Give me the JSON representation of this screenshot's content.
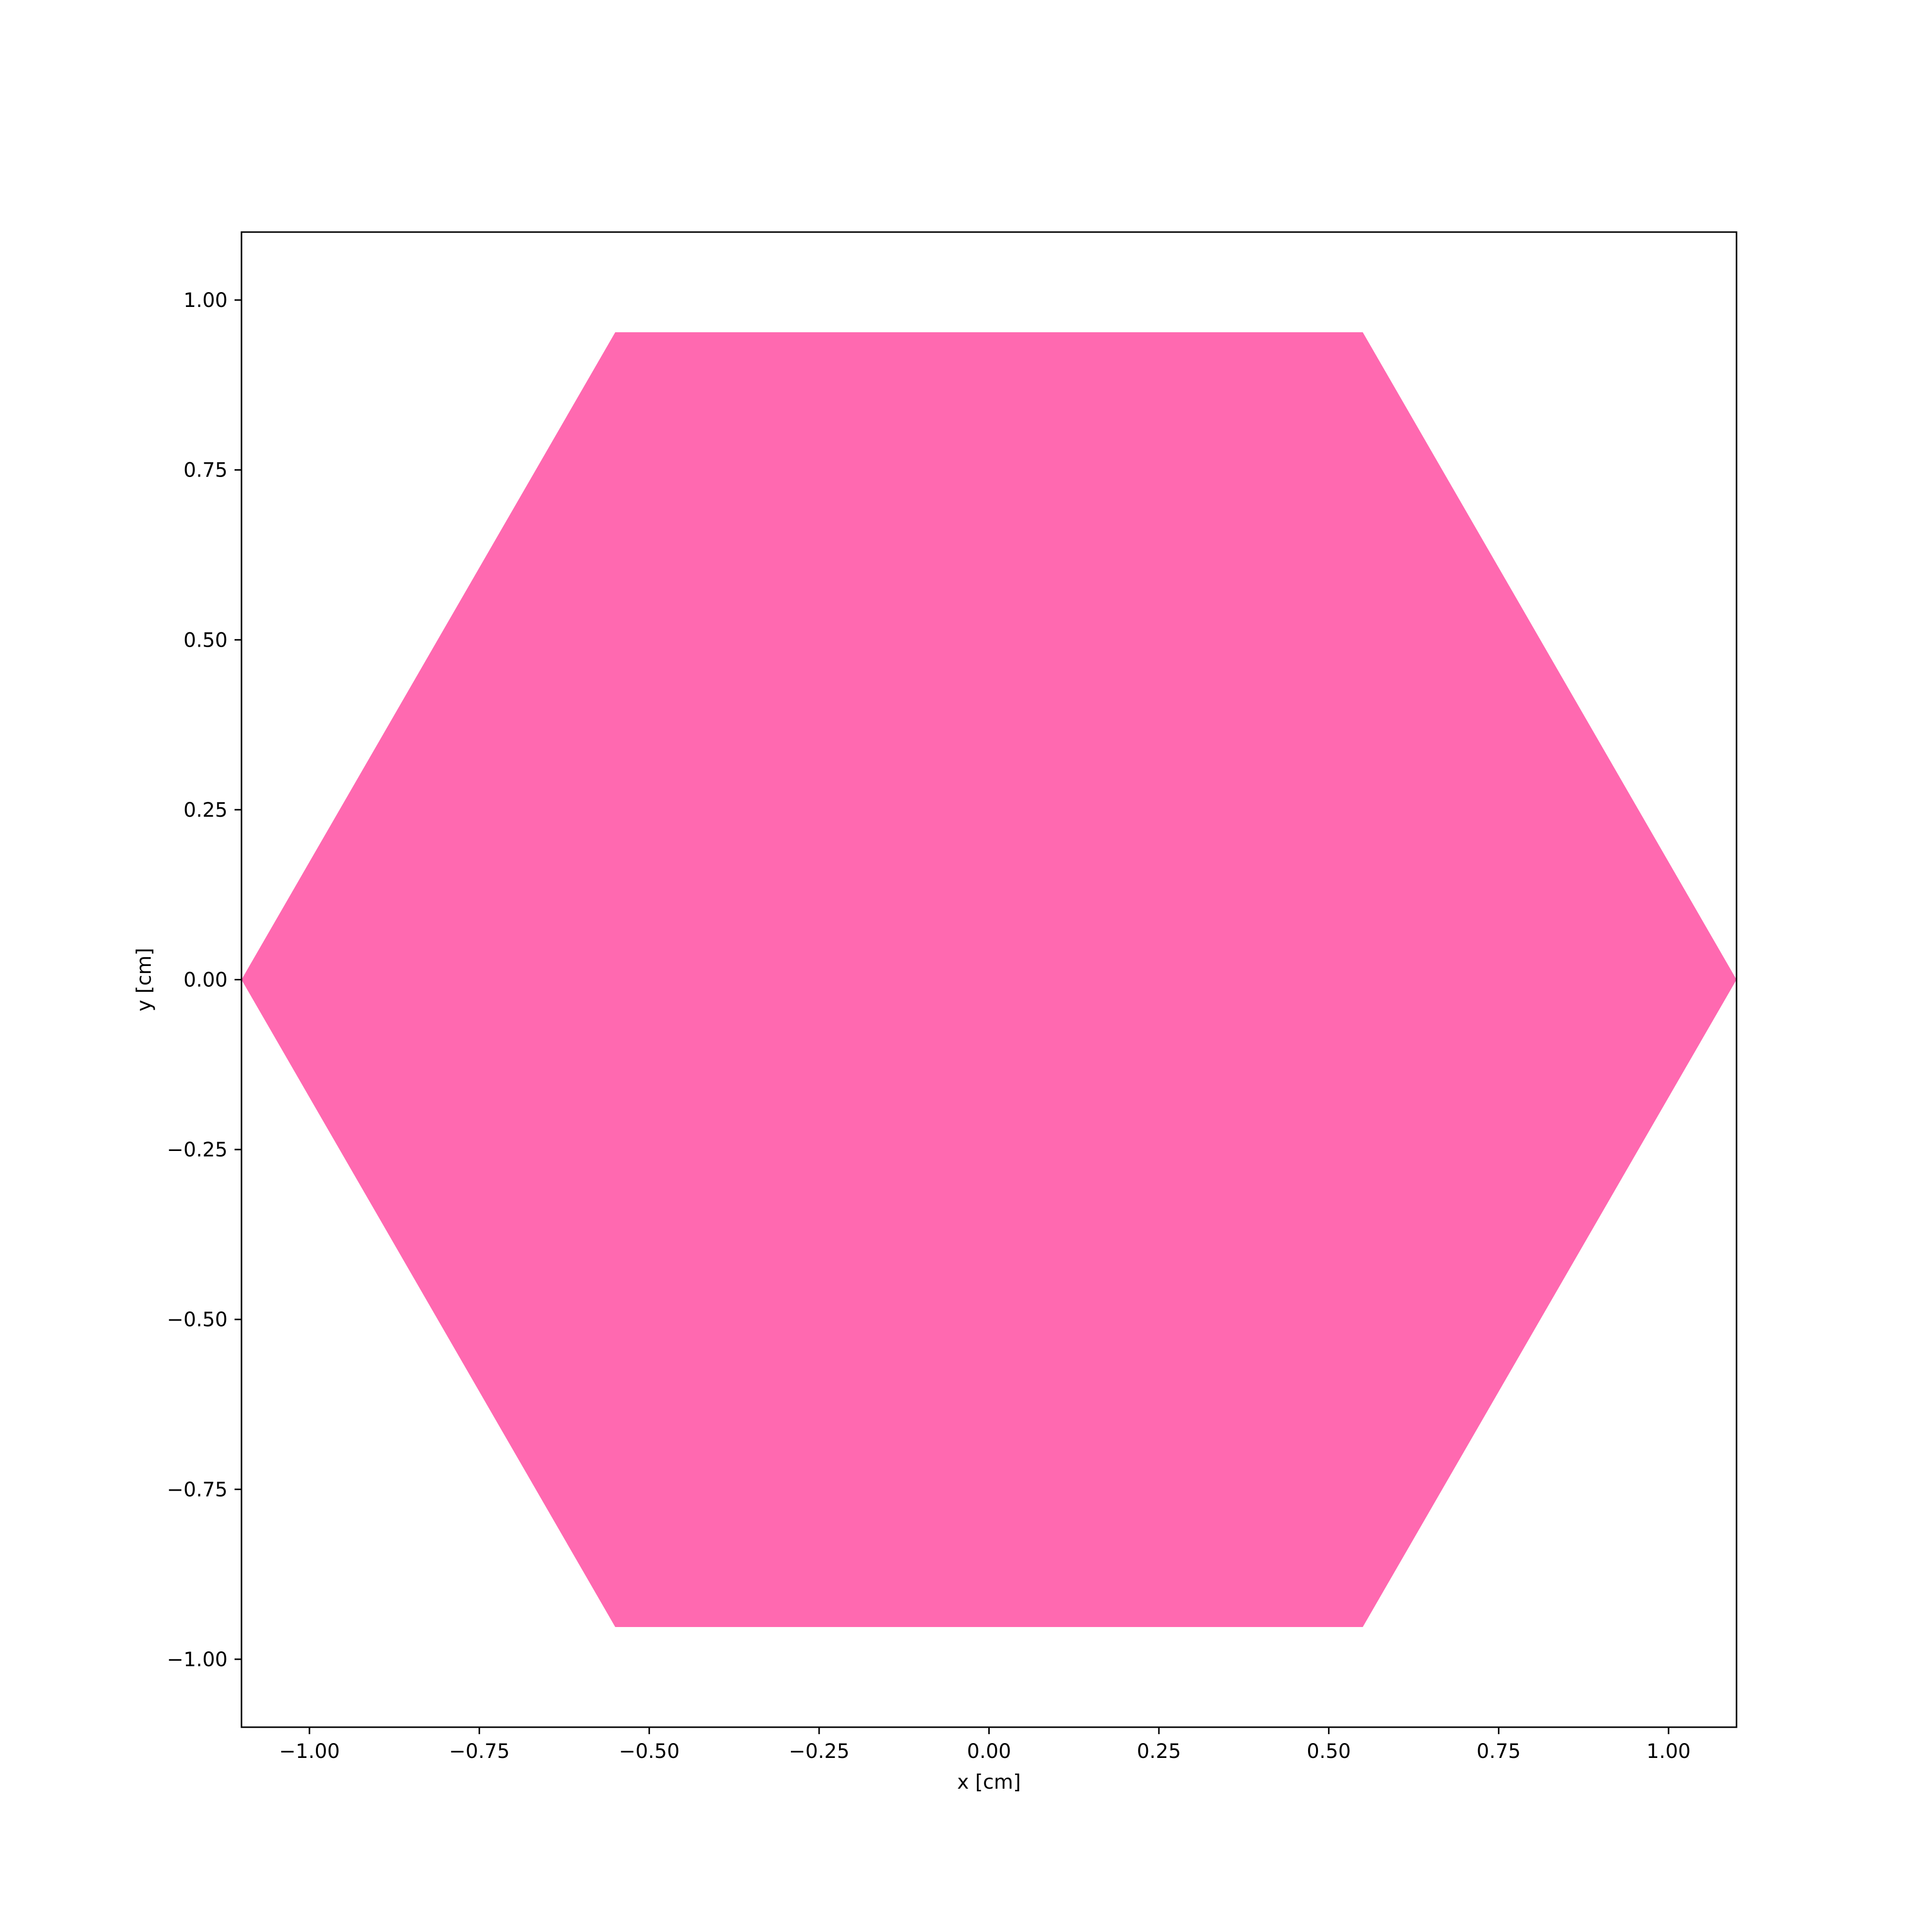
{
  "chart_data": {
    "type": "area",
    "xlabel": "x [cm]",
    "ylabel": "y [cm]",
    "xlim": [
      -1.1,
      1.1
    ],
    "ylim": [
      -1.1,
      1.1
    ],
    "xticks": [
      -1.0,
      -0.75,
      -0.5,
      -0.25,
      0.0,
      0.25,
      0.5,
      0.75,
      1.0
    ],
    "xtick_labels": [
      "−1.00",
      "−0.75",
      "−0.50",
      "−0.25",
      "0.00",
      "0.25",
      "0.50",
      "0.75",
      "1.00"
    ],
    "yticks": [
      1.0,
      0.75,
      0.5,
      0.25,
      0.0,
      -0.25,
      -0.5,
      -0.75,
      -1.0
    ],
    "ytick_labels": [
      "1.00",
      "0.75",
      "0.50",
      "0.25",
      "0.00",
      "−0.25",
      "−0.50",
      "−0.75",
      "−1.00"
    ],
    "grid": false,
    "series": [
      {
        "shape": "hexagon",
        "color": "#ff69b0",
        "x": [
          -1.1,
          -0.55,
          0.55,
          1.1,
          0.55,
          -0.55
        ],
        "y": [
          0.0,
          0.9526,
          0.9526,
          0.0,
          -0.9526,
          -0.9526
        ]
      }
    ]
  }
}
